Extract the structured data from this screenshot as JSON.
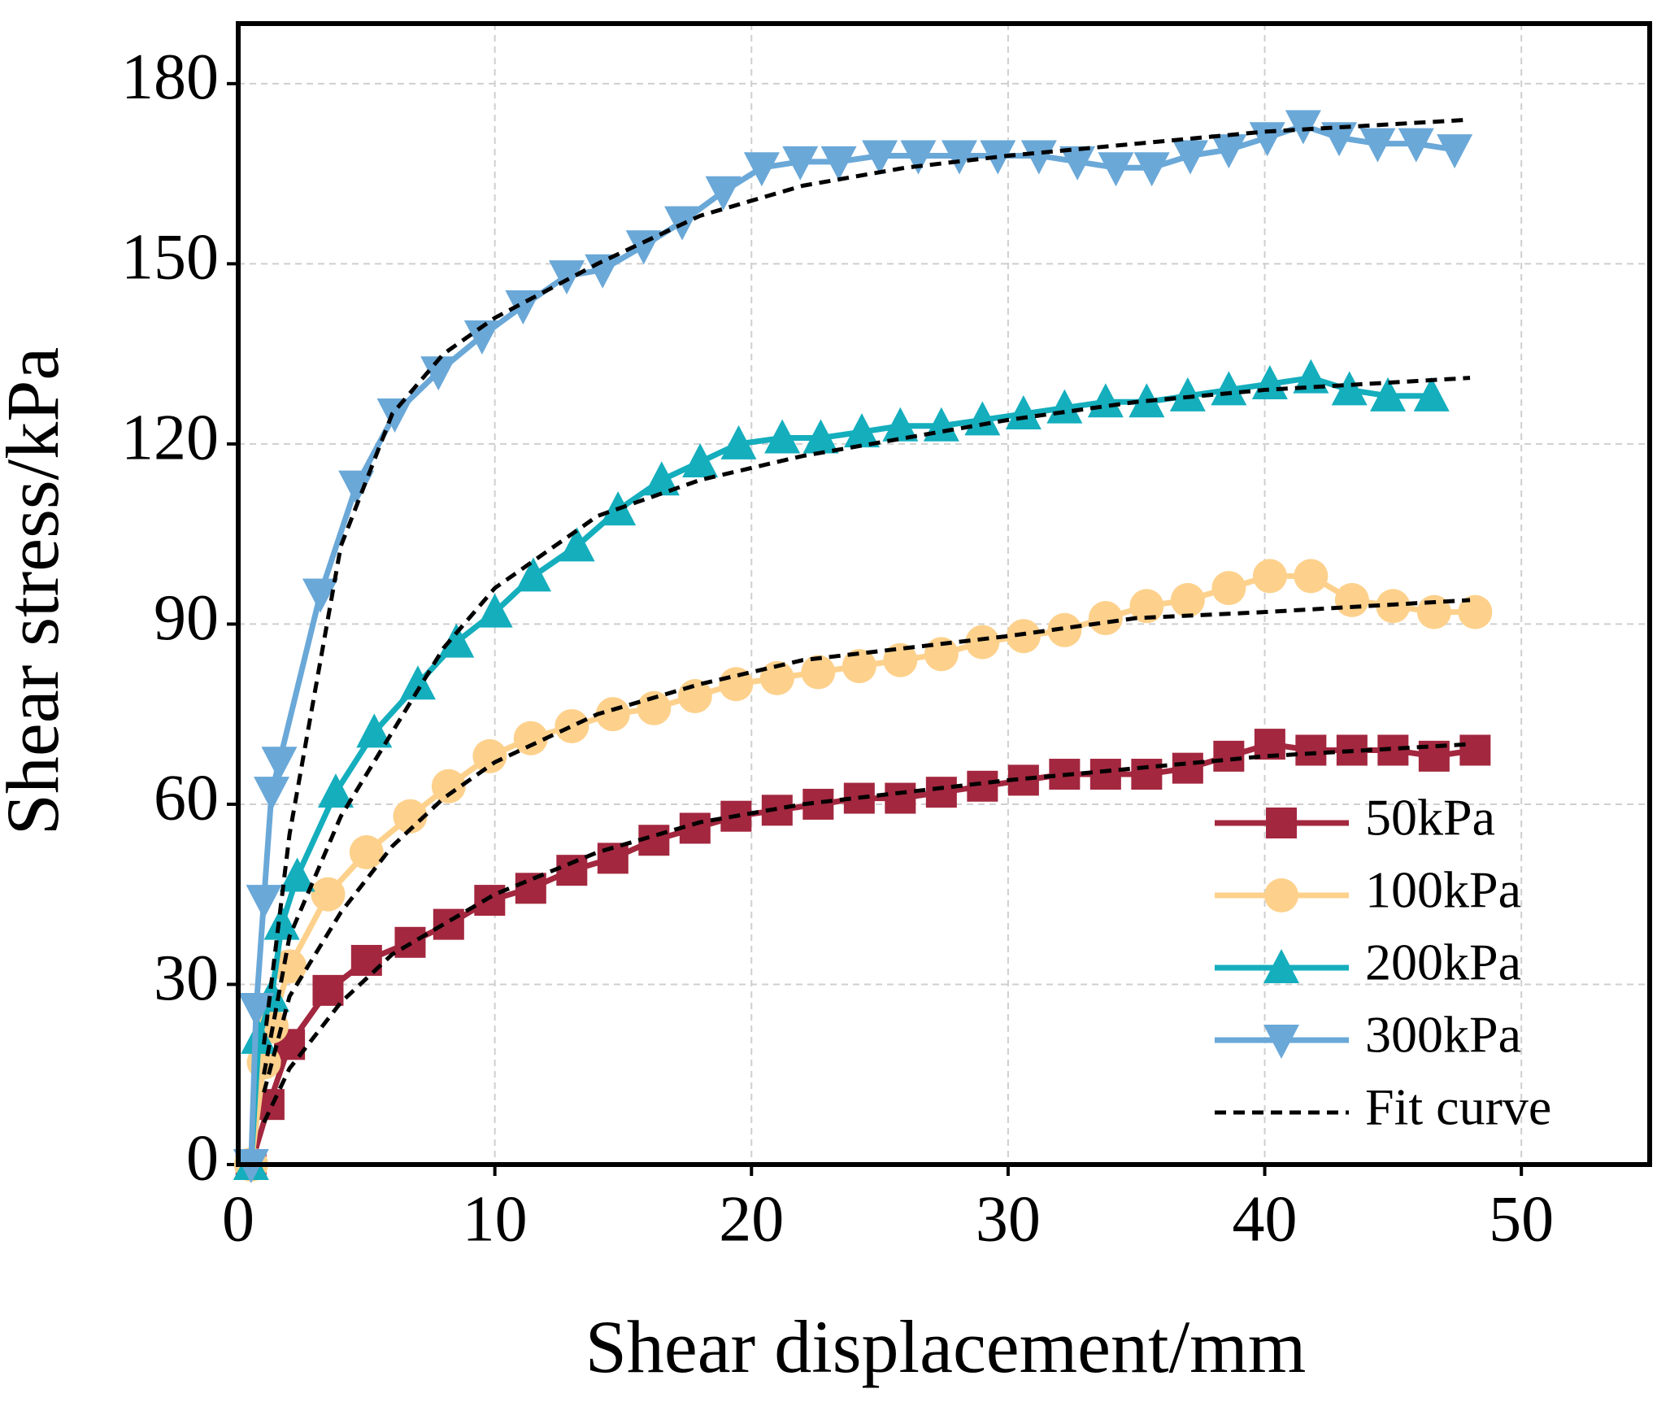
{
  "chart_data": {
    "type": "line",
    "xlabel": "Shear displacement/mm",
    "ylabel": "Shear stress/kPa",
    "xlim": [
      0,
      55
    ],
    "xticks": [
      0,
      10,
      20,
      30,
      40,
      50
    ],
    "ylim": [
      0,
      190
    ],
    "yticks": [
      0,
      30,
      60,
      90,
      120,
      150,
      180
    ],
    "grid": true,
    "legend": "lower right",
    "series": [
      {
        "name": "50kPa",
        "color": "#a3273f",
        "marker": "square",
        "x": [
          0.5,
          1.2,
          2,
          3.5,
          5,
          6.7,
          8.2,
          9.8,
          11.4,
          13,
          14.6,
          16.2,
          17.8,
          19.4,
          21,
          22.6,
          24.2,
          25.8,
          27.4,
          29,
          30.6,
          32.2,
          33.8,
          35.4,
          37,
          38.6,
          40.2,
          41.8,
          43.4,
          45,
          46.6,
          48.2
        ],
        "values": [
          0,
          10,
          20,
          29,
          34,
          37,
          40,
          44,
          46,
          49,
          51,
          54,
          56,
          58,
          59,
          60,
          61,
          61,
          62,
          63,
          64,
          65,
          65,
          65,
          66,
          68,
          70,
          69,
          69,
          69,
          68,
          69
        ]
      },
      {
        "name": "100kPa",
        "color": "#fdd18c",
        "marker": "circle",
        "x": [
          0.5,
          1,
          1.3,
          2,
          3.5,
          5,
          6.7,
          8.2,
          9.8,
          11.4,
          13,
          14.6,
          16.2,
          17.8,
          19.4,
          21,
          22.6,
          24.2,
          25.8,
          27.4,
          29,
          30.6,
          32.2,
          33.8,
          35.4,
          37,
          38.6,
          40.2,
          41.8,
          43.4,
          45,
          46.6,
          48.2
        ],
        "values": [
          0,
          17,
          23,
          33,
          45,
          52,
          58,
          63,
          68,
          71,
          73,
          75,
          76,
          78,
          80,
          81,
          82,
          83,
          84,
          85,
          87,
          88,
          89,
          91,
          93,
          94,
          96,
          98,
          98,
          94,
          93,
          92,
          92
        ]
      },
      {
        "name": "200kPa",
        "color": "#14aebd",
        "marker": "triangle-up",
        "x": [
          0.5,
          0.8,
          1.3,
          1.7,
          2.3,
          3.8,
          5.3,
          7,
          8.5,
          10,
          11.5,
          13.2,
          14.8,
          16.5,
          18,
          19.5,
          21.2,
          22.7,
          24.3,
          25.8,
          27.4,
          29,
          30.6,
          32.2,
          33.8,
          35.4,
          37,
          38.6,
          40.2,
          41.8,
          43.3,
          44.8,
          46.5
        ],
        "values": [
          0,
          21,
          28,
          40,
          48,
          62,
          72,
          80,
          87,
          92,
          98,
          103,
          109,
          114,
          117,
          120,
          121,
          121,
          122,
          123,
          123,
          124,
          125,
          126,
          127,
          127,
          128,
          129,
          130,
          131,
          129,
          128,
          128
        ]
      },
      {
        "name": "300kPa",
        "color": "#6aa8d8",
        "marker": "triangle-down",
        "x": [
          0.5,
          0.7,
          1,
          1.3,
          1.6,
          3.2,
          4.6,
          6.1,
          7.8,
          9.5,
          11.1,
          12.8,
          14.2,
          15.8,
          17.3,
          18.9,
          20.4,
          21.9,
          23.4,
          25,
          26.5,
          28.1,
          29.6,
          31.2,
          32.7,
          34.2,
          35.6,
          37.1,
          38.6,
          40.1,
          41.5,
          42.9,
          44.4,
          45.9,
          47.4
        ],
        "values": [
          0,
          26,
          44,
          62,
          67,
          95,
          113,
          125,
          132,
          138,
          143,
          148,
          149,
          153,
          157,
          162,
          166,
          167,
          167,
          168,
          168,
          168,
          168,
          168,
          167,
          166,
          166,
          168,
          169,
          171,
          173,
          171,
          170,
          170,
          169
        ]
      }
    ],
    "fit": {
      "name": "Fit curve",
      "color": "#000000",
      "x": [
        1,
        2,
        4,
        6,
        8,
        10,
        14,
        18,
        22,
        26,
        30,
        35,
        40,
        44,
        48
      ],
      "curves": [
        [
          7,
          16,
          27,
          35,
          40,
          45,
          52,
          57,
          60,
          62,
          64,
          66,
          68,
          69,
          70
        ],
        [
          12,
          28,
          42,
          53,
          61,
          67,
          75,
          80,
          84,
          86,
          88,
          91,
          92,
          93,
          94
        ],
        [
          15,
          38,
          58,
          72,
          86,
          96,
          108,
          114,
          118,
          121,
          124,
          127,
          129,
          130,
          131
        ],
        [
          20,
          55,
          103,
          125,
          135,
          141,
          150,
          158,
          163,
          166,
          168,
          170,
          172,
          173,
          174
        ]
      ]
    }
  }
}
